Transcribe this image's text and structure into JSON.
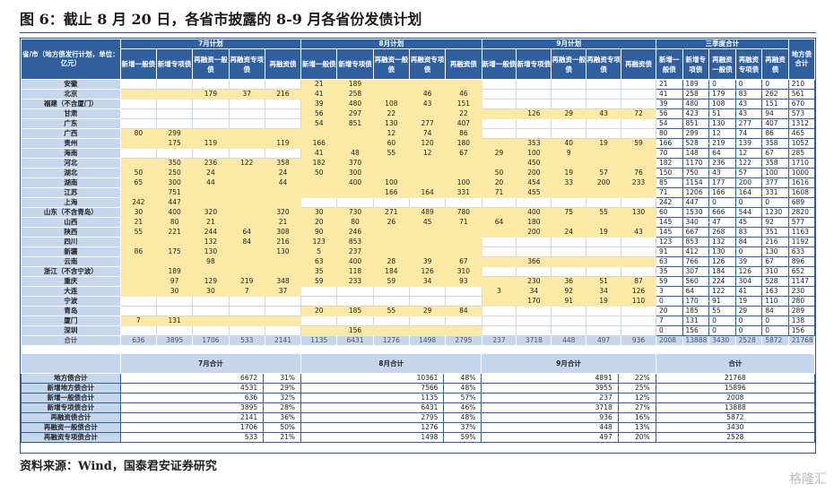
{
  "header": {
    "title": "图 6：截止 8 月 20 日，各省市披露的 8-9 月各省份发债计划"
  },
  "table": {
    "corner": "省/市（地方债发行计划，单位：亿元）",
    "groups": [
      "7月计划",
      "8月计划",
      "9月计划",
      "三季度合计"
    ],
    "total_header": "地方债合计",
    "subheaders": [
      "新增一般债",
      "新增专项债",
      "再融资一般债",
      "再融资专项债",
      "再融资债"
    ],
    "rows": [
      {
        "name": "安徽",
        "cells": [
          null,
          null,
          null,
          null,
          null,
          21,
          189,
          null,
          null,
          null,
          null,
          null,
          null,
          null,
          null,
          21,
          189,
          0,
          0,
          0
        ],
        "total": 210
      },
      {
        "name": "北京",
        "cells": [
          null,
          null,
          179,
          37,
          216,
          41,
          258,
          null,
          46,
          46,
          null,
          null,
          null,
          null,
          null,
          41,
          258,
          179,
          83,
          262
        ],
        "total": 561
      },
      {
        "name": "福建（不含厦门）",
        "cells": [
          null,
          null,
          null,
          null,
          null,
          39,
          480,
          108,
          43,
          151,
          null,
          null,
          null,
          null,
          null,
          39,
          480,
          108,
          43,
          151
        ],
        "total": 670
      },
      {
        "name": "甘肃",
        "cells": [
          null,
          null,
          null,
          null,
          null,
          56,
          297,
          22,
          null,
          22,
          null,
          126,
          29,
          43,
          72,
          56,
          423,
          51,
          43,
          94
        ],
        "total": 573
      },
      {
        "name": "广东",
        "cells": [
          null,
          null,
          null,
          null,
          null,
          54,
          851,
          130,
          277,
          407,
          null,
          null,
          null,
          null,
          null,
          54,
          851,
          130,
          277,
          407
        ],
        "total": 1312
      },
      {
        "name": "广西",
        "cells": [
          80,
          299,
          null,
          null,
          null,
          null,
          null,
          12,
          74,
          86,
          null,
          null,
          null,
          null,
          null,
          80,
          299,
          12,
          74,
          86
        ],
        "total": 465
      },
      {
        "name": "贵州",
        "cells": [
          null,
          175,
          119,
          null,
          119,
          166,
          null,
          60,
          120,
          180,
          null,
          353,
          40,
          19,
          59,
          166,
          528,
          219,
          139,
          358
        ],
        "total": 1052
      },
      {
        "name": "海南",
        "cells": [
          null,
          null,
          null,
          null,
          null,
          41,
          48,
          55,
          12,
          67,
          29,
          100,
          9,
          null,
          null,
          70,
          148,
          64,
          12,
          67
        ],
        "total": 285
      },
      {
        "name": "河北",
        "cells": [
          null,
          350,
          236,
          122,
          358,
          182,
          370,
          null,
          null,
          null,
          null,
          450,
          null,
          null,
          null,
          182,
          1170,
          236,
          122,
          358
        ],
        "total": 1710
      },
      {
        "name": "湖北",
        "cells": [
          50,
          250,
          24,
          null,
          24,
          50,
          300,
          null,
          null,
          null,
          50,
          200,
          19,
          57,
          76,
          150,
          750,
          43,
          57,
          100
        ],
        "total": 1000
      },
      {
        "name": "湖南",
        "cells": [
          65,
          300,
          44,
          null,
          44,
          null,
          400,
          100,
          null,
          100,
          20,
          454,
          33,
          200,
          233,
          85,
          1154,
          177,
          200,
          377
        ],
        "total": 1616
      },
      {
        "name": "江苏",
        "cells": [
          null,
          751,
          null,
          null,
          null,
          null,
          null,
          166,
          164,
          331,
          71,
          455,
          null,
          null,
          null,
          71,
          1206,
          166,
          164,
          331
        ],
        "total": 1608
      },
      {
        "name": "上海",
        "cells": [
          242,
          447,
          null,
          null,
          null,
          null,
          null,
          null,
          null,
          null,
          null,
          null,
          null,
          null,
          null,
          242,
          447,
          0,
          0,
          0
        ],
        "total": 689
      },
      {
        "name": "山东（不含青岛）",
        "cells": [
          30,
          400,
          320,
          null,
          320,
          30,
          730,
          271,
          489,
          780,
          null,
          400,
          75,
          55,
          130,
          60,
          1530,
          666,
          544,
          1230
        ],
        "total": 2820
      },
      {
        "name": "山西",
        "cells": [
          21,
          80,
          21,
          null,
          21,
          20,
          80,
          26,
          45,
          71,
          64,
          180,
          null,
          null,
          null,
          145,
          340,
          47,
          45,
          92
        ],
        "total": 577
      },
      {
        "name": "陕西",
        "cells": [
          55,
          221,
          244,
          64,
          308,
          90,
          246,
          null,
          null,
          null,
          null,
          200,
          24,
          19,
          43,
          145,
          667,
          268,
          83,
          351
        ],
        "total": 1163
      },
      {
        "name": "四川",
        "cells": [
          null,
          null,
          132,
          84,
          216,
          123,
          853,
          null,
          null,
          null,
          null,
          null,
          null,
          null,
          null,
          123,
          853,
          132,
          84,
          216
        ],
        "total": 1192
      },
      {
        "name": "新疆",
        "cells": [
          86,
          175,
          130,
          null,
          130,
          5,
          237,
          null,
          null,
          null,
          null,
          null,
          null,
          null,
          null,
          91,
          412,
          130,
          0,
          130
        ],
        "total": 633
      },
      {
        "name": "云南",
        "cells": [
          null,
          null,
          98,
          null,
          null,
          63,
          400,
          28,
          39,
          67,
          null,
          366,
          null,
          null,
          null,
          63,
          766,
          126,
          39,
          67
        ],
        "total": 896
      },
      {
        "name": "浙江（不含宁波）",
        "cells": [
          null,
          189,
          null,
          null,
          null,
          35,
          118,
          184,
          126,
          310,
          null,
          null,
          null,
          null,
          null,
          35,
          307,
          184,
          126,
          310
        ],
        "total": 652
      },
      {
        "name": "重庆",
        "cells": [
          null,
          97,
          129,
          219,
          348,
          59,
          233,
          59,
          34,
          93,
          null,
          230,
          36,
          51,
          87,
          59,
          560,
          224,
          304,
          528
        ],
        "total": 1147
      },
      {
        "name": "大连",
        "cells": [
          null,
          30,
          30,
          7,
          37,
          null,
          null,
          null,
          null,
          null,
          3,
          34,
          92,
          34,
          126,
          3,
          64,
          122,
          41,
          163
        ],
        "total": 230
      },
      {
        "name": "宁波",
        "cells": [
          null,
          null,
          null,
          null,
          null,
          null,
          null,
          null,
          null,
          null,
          null,
          170,
          91,
          19,
          110,
          0,
          170,
          91,
          19,
          110
        ],
        "total": 280
      },
      {
        "name": "青岛",
        "cells": [
          null,
          null,
          null,
          null,
          null,
          20,
          185,
          55,
          29,
          84,
          null,
          null,
          null,
          null,
          null,
          20,
          185,
          55,
          29,
          84
        ],
        "total": 289
      },
      {
        "name": "厦门",
        "cells": [
          7,
          131,
          null,
          null,
          null,
          null,
          null,
          null,
          null,
          null,
          null,
          null,
          null,
          null,
          null,
          7,
          131,
          0,
          0,
          0
        ],
        "total": 138
      },
      {
        "name": "深圳",
        "cells": [
          null,
          null,
          null,
          null,
          null,
          null,
          156,
          null,
          null,
          null,
          null,
          null,
          null,
          null,
          null,
          0,
          156,
          0,
          0,
          0
        ],
        "total": 156
      },
      {
        "name": "合计",
        "cells": [
          636,
          3895,
          1706,
          533,
          2141,
          1135,
          6431,
          1276,
          1498,
          2795,
          237,
          3718,
          448,
          497,
          936,
          2008,
          13888,
          3430,
          2528,
          5872
        ],
        "total": 21768
      }
    ]
  },
  "summary": {
    "headers": [
      "7月合计",
      "8月合计",
      "9月合计",
      "合计"
    ],
    "rows": [
      {
        "label": "地方债合计",
        "cells": [
          6672,
          "31%",
          10361,
          "48%",
          4891,
          "22%"
        ],
        "total": 21768
      },
      {
        "label": "新增地方债合计",
        "cells": [
          4531,
          "29%",
          7566,
          "48%",
          3955,
          "25%"
        ],
        "total": 15896
      },
      {
        "label": "新增一般债合计",
        "cells": [
          636,
          "32%",
          1135,
          "57%",
          237,
          "12%"
        ],
        "total": 2008
      },
      {
        "label": "新增专项债合计",
        "cells": [
          3895,
          "28%",
          6431,
          "46%",
          3718,
          "27%"
        ],
        "total": 13888
      },
      {
        "label": "再融资债合计",
        "cells": [
          2141,
          "36%",
          2795,
          "48%",
          936,
          "16%"
        ],
        "total": 5872
      },
      {
        "label": "再融资一般债合计",
        "cells": [
          1706,
          "50%",
          1276,
          "37%",
          448,
          "13%"
        ],
        "total": 3430
      },
      {
        "label": "再融资专项债合计",
        "cells": [
          533,
          "21%",
          1498,
          "59%",
          497,
          "20%"
        ],
        "total": 2528
      }
    ]
  },
  "source": "资料来源：Wind，国泰君安证券研究",
  "watermark": "格隆汇"
}
